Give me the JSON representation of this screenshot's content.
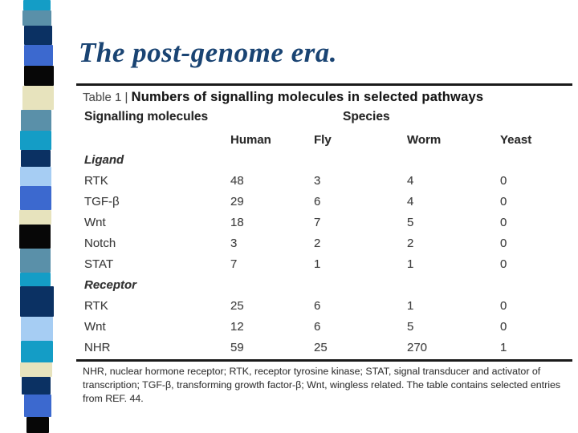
{
  "slide": {
    "title": "The post-genome era.",
    "title_color": "#1a4473",
    "background_color": "#ffffff"
  },
  "ribbon": {
    "palette": {
      "teal": "#149dc6",
      "steelblue": "#5a90a9",
      "navy": "#0b3163",
      "royal": "#3c69cf",
      "black": "#070707",
      "cream": "#e7e3bd",
      "lightblue": "#a6cdf3"
    },
    "sequence": [
      "teal",
      "steelblue",
      "navy",
      "royal",
      "black",
      "cream",
      "steelblue",
      "teal",
      "navy",
      "lightblue",
      "royal",
      "cream",
      "black",
      "steelblue",
      "teal",
      "navy",
      "lightblue",
      "teal",
      "cream",
      "navy",
      "royal",
      "black"
    ]
  },
  "table": {
    "label_prefix": "Table 1 | ",
    "heading": "Numbers of signalling molecules in selected pathways",
    "col_group_left": "Signalling molecules",
    "col_group_right": "Species",
    "columns": [
      "Human",
      "Fly",
      "Worm",
      "Yeast"
    ],
    "sections": [
      {
        "name": "Ligand",
        "rows": [
          {
            "label": "RTK",
            "values": [
              "48",
              "3",
              "4",
              "0"
            ]
          },
          {
            "label": "TGF-β",
            "values": [
              "29",
              "6",
              "4",
              "0"
            ]
          },
          {
            "label": "Wnt",
            "values": [
              "18",
              "7",
              "5",
              "0"
            ]
          },
          {
            "label": "Notch",
            "values": [
              "3",
              "2",
              "2",
              "0"
            ]
          },
          {
            "label": "STAT",
            "values": [
              "7",
              "1",
              "1",
              "0"
            ]
          }
        ]
      },
      {
        "name": "Receptor",
        "rows": [
          {
            "label": "RTK",
            "values": [
              "25",
              "6",
              "1",
              "0"
            ]
          },
          {
            "label": "Wnt",
            "values": [
              "12",
              "6",
              "5",
              "0"
            ]
          },
          {
            "label": "NHR",
            "values": [
              "59",
              "25",
              "270",
              "1"
            ]
          }
        ]
      }
    ],
    "footnote": "NHR, nuclear hormone receptor; RTK, receptor tyrosine kinase; STAT, signal transducer and activator of transcription; TGF-β, transforming growth factor-β; Wnt, wingless related. The table contains selected entries from REF. 44."
  }
}
